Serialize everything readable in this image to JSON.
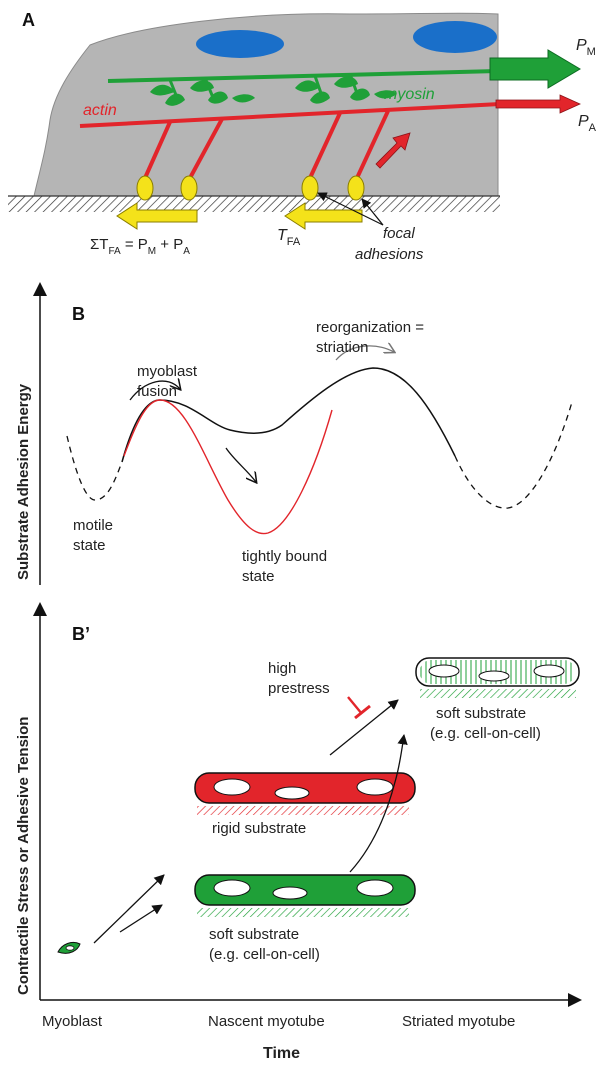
{
  "panelA": {
    "label": "A",
    "actin": "actin",
    "myosin": "myosin",
    "pm": {
      "main": "P",
      "sub": "M"
    },
    "pa": {
      "main": "P",
      "sub": "A"
    },
    "tfa": {
      "main": "T",
      "sub": "FA"
    },
    "focal_adhesions": [
      "focal",
      "adhesions"
    ],
    "equation": {
      "sigma": "ΣT",
      "s1": "FA",
      "eq": " = P",
      "s2": "M",
      "plus": " + P",
      "s3": "A"
    },
    "colors": {
      "cell": "#b5b5b5",
      "nucleus": "#1a6fc9",
      "actin": "#e2252b",
      "myosin": "#1fa038",
      "adhesion": "#f4e21a",
      "arrow_yellow": "#f4e21a"
    }
  },
  "panelB": {
    "label": "B",
    "y_axis": "Substrate Adhesion Energy",
    "myoblast_fusion": [
      "myoblast",
      "fusion"
    ],
    "reorganization": [
      "reorganization =",
      "striation"
    ],
    "motile_state": [
      "motile",
      "state"
    ],
    "tightly_bound": [
      "tightly bound",
      "state"
    ]
  },
  "panelB2": {
    "label": "B’",
    "y_axis": "Contractile Stress or Adhesive Tension",
    "high_prestress": [
      "high",
      "prestress"
    ],
    "rigid_substrate": "rigid substrate",
    "soft_substrate_mid": [
      "soft substrate",
      "(e.g. cell-on-cell)"
    ],
    "soft_substrate_top": [
      "soft substrate",
      "(e.g. cell-on-cell)"
    ],
    "x_ticks": [
      "Myoblast",
      "Nascent myotube",
      "Striated myotube"
    ],
    "x_axis": "Time"
  }
}
